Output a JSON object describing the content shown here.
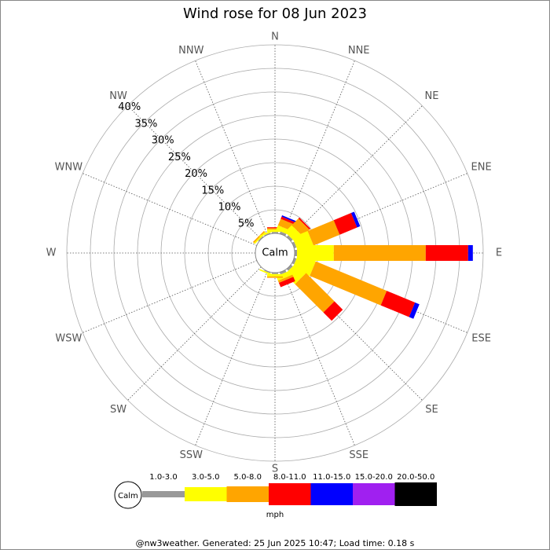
{
  "chart_data": {
    "type": "windrose",
    "title": "Wind rose for 08 Jun 2023",
    "directions": [
      "N",
      "NNE",
      "NE",
      "ENE",
      "E",
      "ESE",
      "SE",
      "SSE",
      "S",
      "SSW",
      "SW",
      "WSW",
      "W",
      "WNW",
      "NW",
      "NNW"
    ],
    "calm_label": "Calm",
    "rlim": [
      0,
      40
    ],
    "rticks": [
      {
        "value": 5,
        "label": "5%"
      },
      {
        "value": 10,
        "label": "10%"
      },
      {
        "value": 15,
        "label": "15%"
      },
      {
        "value": 20,
        "label": "20%"
      },
      {
        "value": 25,
        "label": "25%"
      },
      {
        "value": 30,
        "label": "30%"
      },
      {
        "value": 35,
        "label": "35%"
      },
      {
        "value": 40,
        "label": "40%"
      }
    ],
    "series": [
      {
        "name": "1.0-3.0",
        "color": "#999999",
        "values": [
          0.3,
          0.5,
          0.5,
          0.5,
          0.5,
          0.5,
          0.5,
          0.5,
          0.3,
          0.2,
          0,
          0,
          0,
          0,
          0.2,
          0.2
        ]
      },
      {
        "name": "3.0-5.0",
        "color": "#ffff00",
        "values": [
          0.5,
          1,
          2,
          3.5,
          7.8,
          4,
          3,
          1,
          0.5,
          0.3,
          0,
          0,
          0,
          0,
          0.3,
          0.3
        ]
      },
      {
        "name": "5.0-8.0",
        "color": "#ffa500",
        "values": [
          0.3,
          1.5,
          2,
          6,
          19.5,
          16.3,
          8.5,
          0.5,
          0.3,
          0,
          0,
          0,
          0,
          0,
          0.3,
          0
        ]
      },
      {
        "name": "8.0-11.0",
        "color": "#ff0000",
        "values": [
          0.2,
          0.5,
          0.3,
          4,
          9,
          6.5,
          2.5,
          1,
          0,
          0,
          0,
          0,
          0,
          0,
          0,
          0
        ]
      },
      {
        "name": "11.0-15.0",
        "color": "#0000ff",
        "values": [
          0,
          0.3,
          0,
          0.7,
          1,
          1,
          0,
          0,
          0,
          0,
          0,
          0,
          0,
          0,
          0,
          0
        ]
      },
      {
        "name": "15.0-20.0",
        "color": "#a020f0",
        "values": [
          0,
          0,
          0,
          0,
          0,
          0,
          0,
          0,
          0,
          0,
          0,
          0,
          0,
          0,
          0,
          0
        ]
      },
      {
        "name": "20.0-50.0",
        "color": "#000000",
        "values": [
          0,
          0,
          0,
          0,
          0,
          0,
          0,
          0,
          0,
          0,
          0,
          0,
          0,
          0,
          0,
          0
        ]
      }
    ],
    "unit_label": "mph",
    "footer": "@nw3weather. Generated: 25 Jun 2025 10:47; Load time: 0.18 s"
  }
}
